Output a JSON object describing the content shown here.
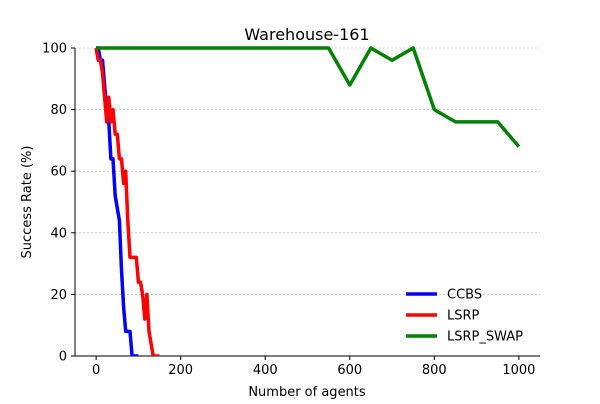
{
  "chart_data": {
    "type": "line",
    "title": "Warehouse-161",
    "xlabel": "Number of agents",
    "ylabel": "Success Rate (%)",
    "xlim": [
      -50,
      1050
    ],
    "ylim": [
      0,
      100
    ],
    "x_ticks": [
      0,
      200,
      400,
      600,
      800,
      1000
    ],
    "y_ticks": [
      0,
      20,
      40,
      60,
      80,
      100
    ],
    "grid": "horizontal dashed",
    "legend_position": "lower-right",
    "series": [
      {
        "name": "CCBS",
        "color": "#0000ff",
        "x": [
          0,
          5,
          10,
          15,
          20,
          25,
          30,
          35,
          40,
          45,
          50,
          55,
          60,
          65,
          70,
          75,
          80,
          85,
          90,
          95,
          100
        ],
        "y": [
          100,
          100,
          96,
          96,
          88,
          80,
          76,
          64,
          64,
          52,
          48,
          44,
          28,
          16,
          8,
          8,
          8,
          0,
          0,
          0,
          0
        ]
      },
      {
        "name": "LSRP",
        "color": "#ff0000",
        "x": [
          0,
          5,
          10,
          15,
          20,
          25,
          30,
          35,
          40,
          45,
          50,
          55,
          60,
          65,
          70,
          75,
          80,
          85,
          90,
          95,
          100,
          105,
          110,
          115,
          120,
          125,
          130,
          135,
          140,
          145,
          150
        ],
        "y": [
          100,
          96,
          96,
          92,
          84,
          76,
          84,
          76,
          80,
          72,
          72,
          64,
          64,
          56,
          60,
          44,
          32,
          32,
          32,
          32,
          24,
          24,
          20,
          12,
          20,
          8,
          4,
          0,
          0,
          0,
          0
        ]
      },
      {
        "name": "LSRP_SWAP",
        "color": "#008000",
        "x": [
          0,
          50,
          100,
          150,
          200,
          250,
          300,
          350,
          400,
          450,
          500,
          550,
          600,
          650,
          700,
          750,
          800,
          850,
          900,
          950,
          1000
        ],
        "y": [
          100,
          100,
          100,
          100,
          100,
          100,
          100,
          100,
          100,
          100,
          100,
          100,
          88,
          100,
          96,
          100,
          80,
          76,
          76,
          76,
          68
        ]
      }
    ]
  }
}
